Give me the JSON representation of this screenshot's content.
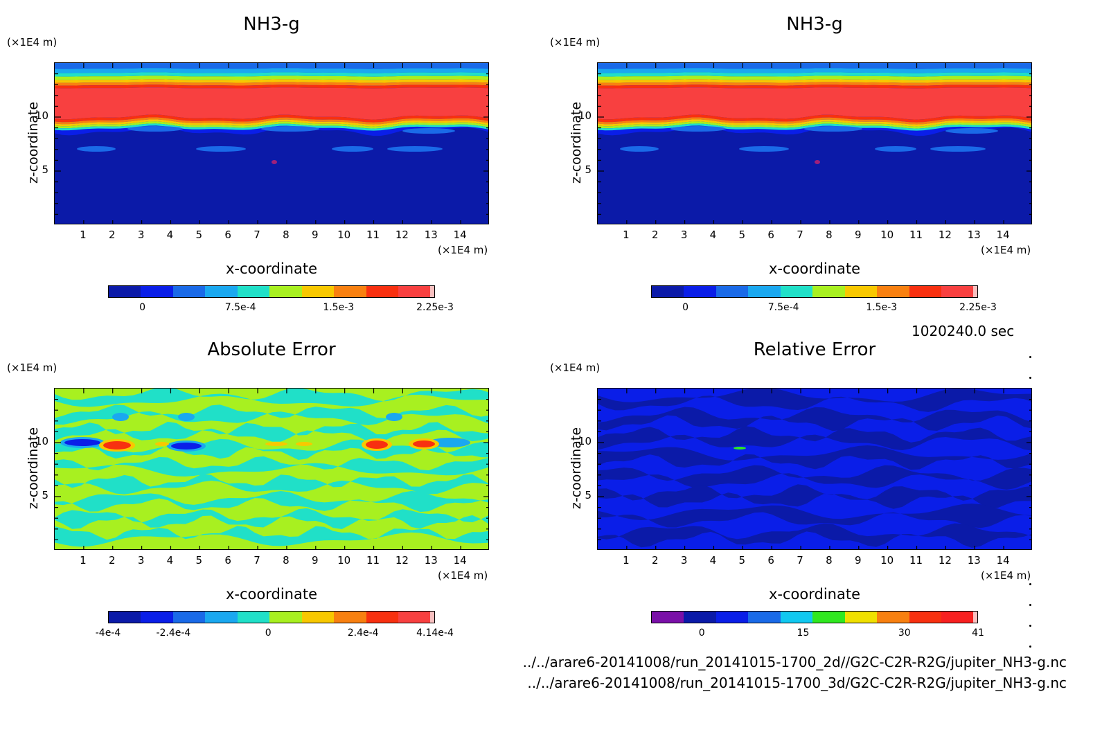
{
  "time_label": "1020240.0 sec",
  "footer_lines": [
    "../../arare6-20141008/run_20141015-1700_2d//G2C-C2R-R2G/jupiter_NH3-g.nc",
    "../../arare6-20141008/run_20141015-1700_3d/G2C-C2R-R2G/jupiter_NH3-g.nc"
  ],
  "chart_data": [
    {
      "type": "heatmap",
      "title": "NH3-g",
      "xlabel": "x-coordinate",
      "ylabel": "z-coordinate",
      "x_unit": "(×1E4 m)",
      "y_unit": "(×1E4 m)",
      "xlim": [
        0,
        15
      ],
      "ylim": [
        0,
        15
      ],
      "x_ticks": [
        "1",
        "2",
        "3",
        "4",
        "5",
        "6",
        "7",
        "8",
        "9",
        "10",
        "11",
        "12",
        "13",
        "14"
      ],
      "y_ticks": [
        "5",
        "10"
      ],
      "colorbar": {
        "colors": [
          "#0b1aa8",
          "#0a1ee8",
          "#1a6ae8",
          "#1aa8f0",
          "#20e0c8",
          "#a8f020",
          "#f8c800",
          "#f88010",
          "#f83010",
          "#f84040",
          "#f8c0c0"
        ],
        "tick_labels": [
          "0",
          "7.5e-4",
          "1.5e-3",
          "2.25e-3"
        ],
        "tick_positions": [
          0.105,
          0.405,
          0.705,
          1.0
        ],
        "levels": "0 to 2.25e-3"
      },
      "field": "bands"
    },
    {
      "type": "heatmap",
      "title": "NH3-g",
      "xlabel": "x-coordinate",
      "ylabel": "z-coordinate",
      "x_unit": "(×1E4 m)",
      "y_unit": "(×1E4 m)",
      "xlim": [
        0,
        15
      ],
      "ylim": [
        0,
        15
      ],
      "x_ticks": [
        "1",
        "2",
        "3",
        "4",
        "5",
        "6",
        "7",
        "8",
        "9",
        "10",
        "11",
        "12",
        "13",
        "14"
      ],
      "y_ticks": [
        "5",
        "10"
      ],
      "colorbar": {
        "colors": [
          "#0b1aa8",
          "#0a1ee8",
          "#1a6ae8",
          "#1aa8f0",
          "#20e0c8",
          "#a8f020",
          "#f8c800",
          "#f88010",
          "#f83010",
          "#f84040",
          "#f8c0c0"
        ],
        "tick_labels": [
          "0",
          "7.5e-4",
          "1.5e-3",
          "2.25e-3"
        ],
        "tick_positions": [
          0.105,
          0.405,
          0.705,
          1.0
        ],
        "levels": "0 to 2.25e-3"
      },
      "field": "bands"
    },
    {
      "type": "heatmap",
      "title": "Absolute Error",
      "xlabel": "x-coordinate",
      "ylabel": "z-coordinate",
      "x_unit": "(×1E4 m)",
      "y_unit": "(×1E4 m)",
      "xlim": [
        0,
        15
      ],
      "ylim": [
        0,
        15
      ],
      "x_ticks": [
        "1",
        "2",
        "3",
        "4",
        "5",
        "6",
        "7",
        "8",
        "9",
        "10",
        "11",
        "12",
        "13",
        "14"
      ],
      "y_ticks": [
        "5",
        "10"
      ],
      "colorbar": {
        "colors": [
          "#0b1aa8",
          "#0a1ee8",
          "#1a6ae8",
          "#1aa8f0",
          "#20e0c8",
          "#a8f020",
          "#f8c800",
          "#f88010",
          "#f83010",
          "#f84040",
          "#f8c0c0"
        ],
        "tick_labels": [
          "-4e-4",
          "-2.4e-4",
          "0",
          "2.4e-4",
          "4.14e-4"
        ],
        "tick_positions": [
          0.0,
          0.2,
          0.49,
          0.78,
          1.0
        ],
        "levels": "-4e-4 to 4.14e-4"
      },
      "field": "abs_error"
    },
    {
      "type": "heatmap",
      "title": "Relative Error",
      "xlabel": "x-coordinate",
      "ylabel": "z-coordinate",
      "x_unit": "(×1E4 m)",
      "y_unit": "(×1E4 m)",
      "xlim": [
        0,
        15
      ],
      "ylim": [
        0,
        15
      ],
      "x_ticks": [
        "1",
        "2",
        "3",
        "4",
        "5",
        "6",
        "7",
        "8",
        "9",
        "10",
        "11",
        "12",
        "13",
        "14"
      ],
      "y_ticks": [
        "5",
        "10"
      ],
      "colorbar": {
        "colors": [
          "#7a10a8",
          "#0b1aa8",
          "#0a1ee8",
          "#1a6ae8",
          "#10c8f0",
          "#30e820",
          "#f0e000",
          "#f88010",
          "#f83010",
          "#f82020",
          "#f8c0c0"
        ],
        "tick_labels": [
          "0",
          "15",
          "30",
          "41"
        ],
        "tick_positions": [
          0.155,
          0.465,
          0.775,
          1.0
        ],
        "levels": "0 to 41"
      },
      "field": "rel_error"
    }
  ]
}
